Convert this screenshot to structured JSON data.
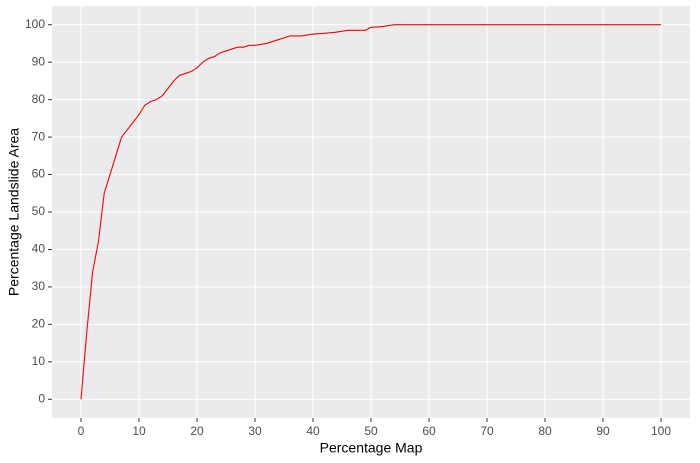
{
  "chart_data": {
    "type": "line",
    "x_label": "Percentage Map",
    "y_label": "Percentage Landslide Area",
    "x": [
      0,
      1,
      2,
      3,
      4,
      5,
      6,
      7,
      8,
      9,
      10,
      11,
      12,
      13,
      14,
      15,
      16,
      17,
      18,
      19,
      20,
      21,
      22,
      23,
      24,
      25,
      26,
      27,
      28,
      29,
      30,
      32,
      34,
      35,
      36,
      38,
      40,
      42,
      44,
      46,
      48,
      49,
      50,
      52,
      54,
      100
    ],
    "series": [
      {
        "color": "#ff0000",
        "values": [
          0,
          18,
          34,
          42,
          55,
          60,
          65,
          70,
          72,
          74,
          76,
          78.5,
          79.5,
          80,
          81,
          83,
          85,
          86.5,
          87,
          87.5,
          88.5,
          90,
          91,
          91.5,
          92.5,
          93,
          93.5,
          94,
          94,
          94.5,
          94.5,
          95,
          96,
          96.5,
          97,
          97,
          97.5,
          97.7,
          98,
          98.5,
          98.5,
          98.5,
          99.3,
          99.5,
          100,
          100
        ]
      }
    ],
    "xlim": [
      -5,
      105
    ],
    "ylim": [
      -5,
      105
    ],
    "xticks": [
      0,
      10,
      20,
      30,
      40,
      50,
      60,
      70,
      80,
      90,
      100
    ],
    "yticks": [
      0,
      10,
      20,
      30,
      40,
      50,
      60,
      70,
      80,
      90,
      100
    ],
    "grid": true
  }
}
